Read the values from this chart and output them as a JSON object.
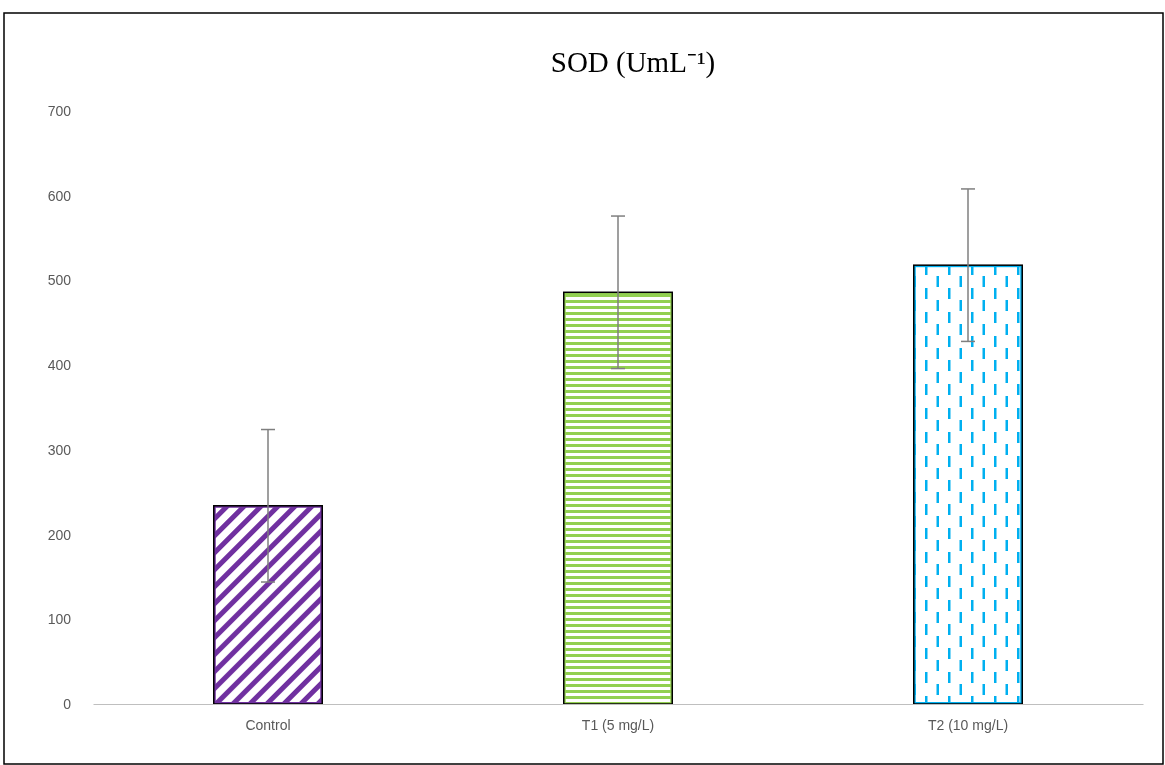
{
  "chart_data": {
    "type": "bar",
    "title": "SOD (UmL⁻¹)",
    "categories": [
      "Control",
      "T1 (5 mg/L)",
      "T2 (10 mg/L)"
    ],
    "values": [
      234,
      486,
      518
    ],
    "errors": [
      90,
      90,
      90
    ],
    "colors": [
      "#7030a0",
      "#92d050",
      "#00b0f0"
    ],
    "ylim": [
      0,
      700
    ],
    "yticks": [
      0,
      100,
      200,
      300,
      400,
      500,
      600,
      700
    ],
    "grid": false
  }
}
